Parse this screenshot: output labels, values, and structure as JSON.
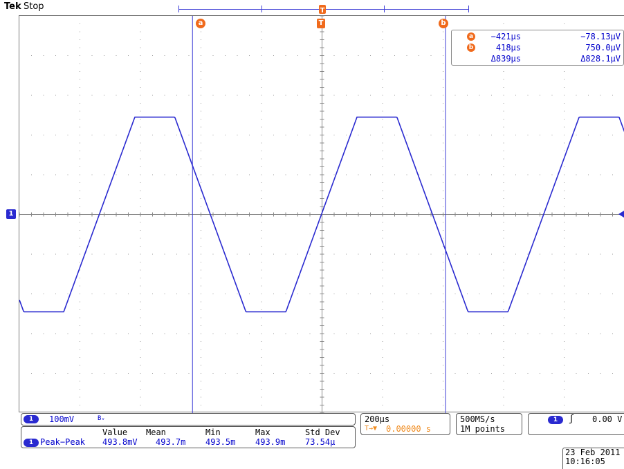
{
  "header": {
    "brand": "Tek",
    "status": "Stop"
  },
  "markers": {
    "cursor_a": "a",
    "cursor_b": "b",
    "trigger": "T",
    "channel": "1"
  },
  "cursor_readout": {
    "a": {
      "label": "a",
      "time": "−421μs",
      "value": "−78.13μV"
    },
    "b": {
      "label": "b",
      "time": "418μs",
      "value": "750.0μV"
    },
    "delta": {
      "time": "Δ839μs",
      "value": "Δ828.1μV"
    }
  },
  "waveform": {
    "channel": "1",
    "shape": "trapezoid wave",
    "color": "#2a2ad0",
    "divisions_x": 10,
    "divisions_y": 10,
    "cursor_a_position_div": 2.86,
    "cursor_b_position_div": 7.04,
    "trigger_position_div": 4.99
  },
  "channel_info": {
    "label": "1",
    "scale": "100mV",
    "bw_symbol": "Bᵥ"
  },
  "measurement": {
    "channel": "1",
    "name": "Peak−Peak",
    "headers": [
      "Value",
      "Mean",
      "Min",
      "Max",
      "Std Dev"
    ],
    "values": [
      "493.8mV",
      "493.7m",
      "493.5m",
      "493.9m",
      "73.54μ"
    ]
  },
  "timebase": {
    "scale": "200μs",
    "position": "0.00000 s",
    "position_icon": "T→▼"
  },
  "acquisition": {
    "sample_rate": "500MS/s",
    "record_length": "1M points"
  },
  "trigger": {
    "channel": "1",
    "slope_icon": "ʃ",
    "level": "0.00 V"
  },
  "datetime": {
    "date": "23 Feb  2011",
    "time": "10:16:05"
  },
  "colors": {
    "trace": "#2a2ad0",
    "cursor": "#3b3bd6",
    "accent": "#f06a1c",
    "text": "#0000cc"
  }
}
